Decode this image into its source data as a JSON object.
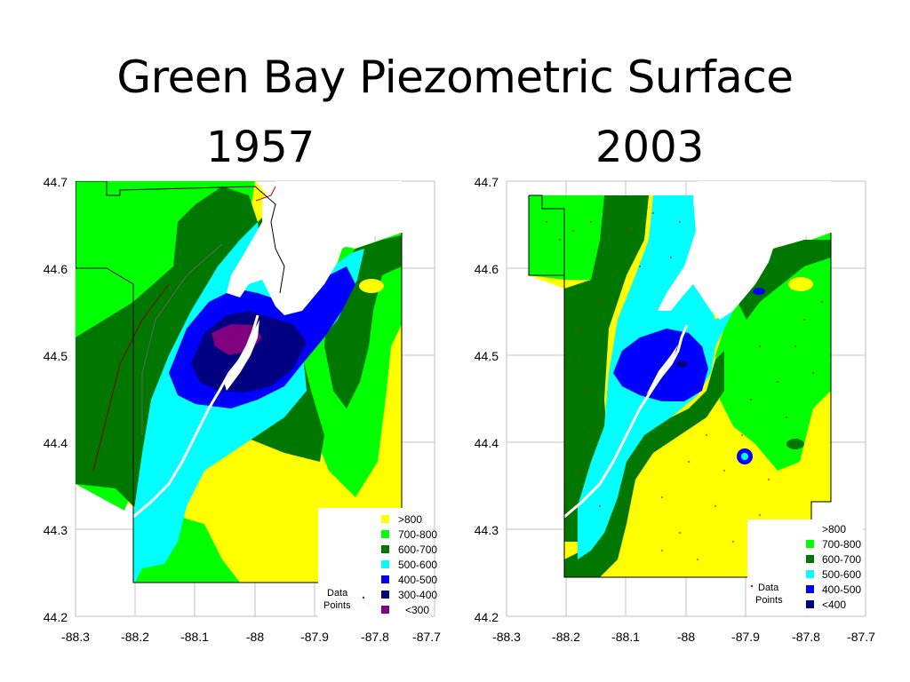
{
  "title": "Green Bay Piezometric Surface",
  "maps": [
    {
      "year": "1957",
      "y_ticks": [
        "44.7",
        "44.6",
        "44.5",
        "44.4",
        "44.3",
        "44.2"
      ],
      "x_ticks": [
        "-88.3",
        "-88.2",
        "-88.1",
        "-88",
        "-87.9",
        "-87.8",
        "-87.7"
      ],
      "legend": [
        {
          "label": ">800",
          "color": "#ffff00"
        },
        {
          "label": "700-800",
          "color": "#00ff00"
        },
        {
          "label": "600-700",
          "color": "#007800"
        },
        {
          "label": "500-600",
          "color": "#00ffff"
        },
        {
          "label": "400-500",
          "color": "#0000ff"
        },
        {
          "label": "300-400",
          "color": "#000080"
        },
        {
          "label": "<300",
          "color": "#800080"
        }
      ],
      "data_points_label": [
        "Data",
        "Points"
      ]
    },
    {
      "year": "2003",
      "y_ticks": [
        "44.7",
        "44.6",
        "44.5",
        "44.4",
        "44.3",
        "44.2"
      ],
      "x_ticks": [
        "-88.3",
        "-88.2",
        "-88.1",
        "-88",
        "-87.9",
        "-87.8",
        "-87.7"
      ],
      "legend": [
        {
          "label": ">800",
          "color": "#ffff00"
        },
        {
          "label": "700-800",
          "color": "#00ff00"
        },
        {
          "label": "600-700",
          "color": "#007800"
        },
        {
          "label": "500-600",
          "color": "#00ffff"
        },
        {
          "label": "400-500",
          "color": "#0000ff"
        },
        {
          "label": "<400",
          "color": "#000080"
        }
      ],
      "data_points_label": [
        "Data",
        "Points"
      ]
    }
  ],
  "colors": {
    "yellow": "#ffff00",
    "light_green": "#00ff00",
    "dark_green": "#007800",
    "cyan": "#00ffff",
    "blue": "#0000ff",
    "navy": "#000080",
    "purple": "#800080",
    "grid": "#c0c0c0",
    "data_point": "#e00000"
  }
}
